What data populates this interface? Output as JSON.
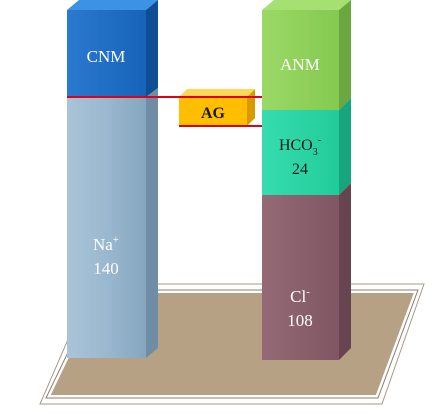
{
  "diagram": {
    "left_column": {
      "top_segment": {
        "label": "CNM",
        "color": "#1f6fc8"
      },
      "bottom_segment": {
        "ion": "Na",
        "charge": "+",
        "value": "140",
        "color": "#9bbad0"
      }
    },
    "right_column": {
      "top_segment": {
        "label": "ANM",
        "color": "#8fd25a"
      },
      "middle_segment": {
        "ion": "HCO",
        "subscript": "3",
        "charge": "-",
        "value": "24",
        "color": "#2bd8a6"
      },
      "bottom_segment": {
        "ion": "Cl",
        "charge": "-",
        "value": "108",
        "color": "#8a5e6a"
      }
    },
    "gap": {
      "label": "AG",
      "color": "#ffbf00"
    },
    "marker_line_color": "#e0001a",
    "base_color": "#b6a184"
  }
}
